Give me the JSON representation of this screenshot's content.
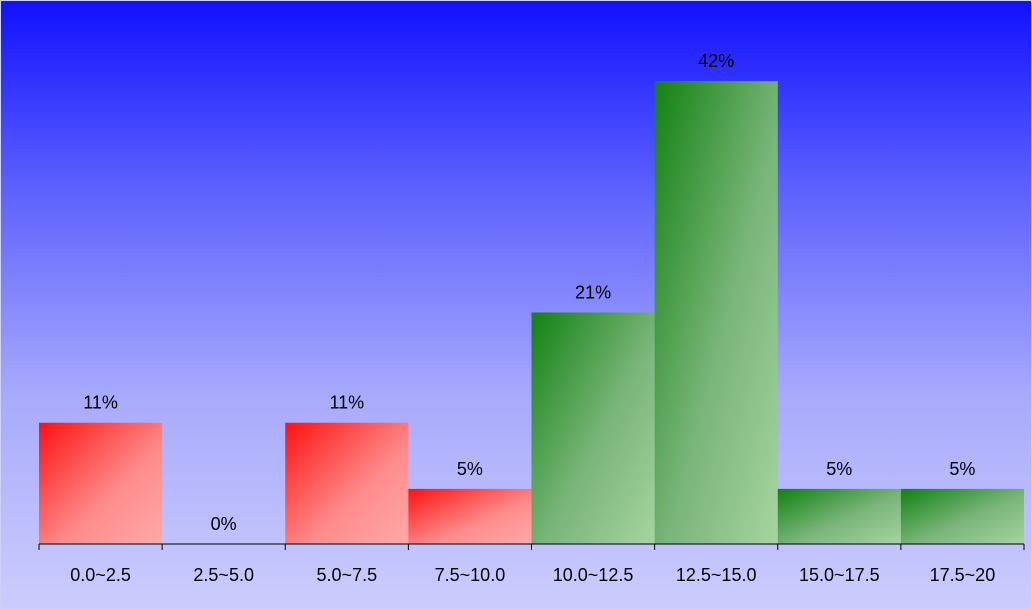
{
  "chart_data": {
    "type": "bar",
    "categories": [
      "0.0~2.5",
      "2.5~5.0",
      "5.0~7.5",
      "7.5~10.0",
      "10.0~12.5",
      "12.5~15.0",
      "15.0~17.5",
      "17.5~20"
    ],
    "values": [
      11,
      0,
      11,
      5,
      21,
      42,
      5,
      5
    ],
    "value_labels": [
      "11%",
      "0%",
      "11%",
      "5%",
      "21%",
      "42%",
      "5%",
      "5%"
    ],
    "ylim": [
      0,
      42
    ],
    "grid": false,
    "legend": "none",
    "colors": {
      "low_bars_start": "#ff1111",
      "low_bars_end": "#ffa8a8",
      "high_bars_start": "#128212",
      "high_bars_end": "#a6d4a0",
      "background_top": "#1111ff",
      "background_bottom": "#ccccfd",
      "axis": "#000000"
    },
    "bar_groups": [
      "red",
      "red",
      "red",
      "red",
      "green",
      "green",
      "green",
      "green"
    ]
  }
}
